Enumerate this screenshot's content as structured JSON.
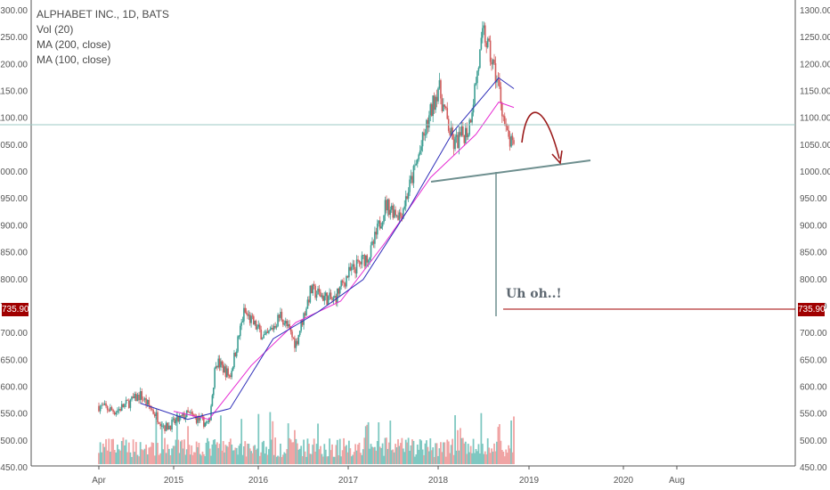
{
  "legend": {
    "symbol": "ALPHABET INC., 1D, BATS",
    "volume": "Vol (20)",
    "ma200": "MA (200, close)",
    "ma100": "MA (100, close)"
  },
  "annotation": "Uh oh..!",
  "current_price": "735.90",
  "colors": {
    "up": "#7ec8c1",
    "down": "#f0a4a4",
    "candle_up": "#3d9e93",
    "candle_down": "#d25d5d",
    "ma200": "#2d2db8",
    "ma100": "#e62ad2",
    "trendline": "#6e8f8f",
    "arrow": "#9b1b1b",
    "badge": "#a00000"
  },
  "chart_data": {
    "type": "candlestick",
    "y_ticks": [
      "1300.00",
      "1250.00",
      "1200.00",
      "1150.00",
      "1100.00",
      "1050.00",
      "1000.00",
      "950.00",
      "900.00",
      "850.00",
      "800.00",
      "750.00",
      "700.00",
      "650.00",
      "600.00",
      "550.00",
      "500.00",
      "450.00"
    ],
    "x_ticks": [
      "Apr",
      "2015",
      "2016",
      "2017",
      "2018",
      "2019",
      "2020",
      "Aug"
    ],
    "ylim": [
      450,
      1300
    ],
    "price_path": [
      {
        "date": "2014-04",
        "close": 565
      },
      {
        "date": "2014-06",
        "close": 555
      },
      {
        "date": "2014-09",
        "close": 585
      },
      {
        "date": "2014-12",
        "close": 525
      },
      {
        "date": "2015-03",
        "close": 550
      },
      {
        "date": "2015-06",
        "close": 530
      },
      {
        "date": "2015-07",
        "close": 650
      },
      {
        "date": "2015-09",
        "close": 620
      },
      {
        "date": "2015-11",
        "close": 740
      },
      {
        "date": "2016-02",
        "close": 690
      },
      {
        "date": "2016-04",
        "close": 735
      },
      {
        "date": "2016-06",
        "close": 680
      },
      {
        "date": "2016-08",
        "close": 780
      },
      {
        "date": "2016-11",
        "close": 760
      },
      {
        "date": "2017-01",
        "close": 810
      },
      {
        "date": "2017-04",
        "close": 850
      },
      {
        "date": "2017-06",
        "close": 940
      },
      {
        "date": "2017-08",
        "close": 920
      },
      {
        "date": "2017-10",
        "close": 1010
      },
      {
        "date": "2018-01",
        "close": 1160
      },
      {
        "date": "2018-03",
        "close": 1050
      },
      {
        "date": "2018-05",
        "close": 1080
      },
      {
        "date": "2018-07",
        "close": 1260
      },
      {
        "date": "2018-09",
        "close": 1160
      },
      {
        "date": "2018-10",
        "close": 1070
      },
      {
        "date": "2018-11",
        "close": 1040
      }
    ],
    "ma200_path": [
      {
        "date": "2014-09",
        "close": 570
      },
      {
        "date": "2015-03",
        "close": 540
      },
      {
        "date": "2015-09",
        "close": 560
      },
      {
        "date": "2016-03",
        "close": 690
      },
      {
        "date": "2016-09",
        "close": 740
      },
      {
        "date": "2017-03",
        "close": 800
      },
      {
        "date": "2017-09",
        "close": 930
      },
      {
        "date": "2018-03",
        "close": 1075
      },
      {
        "date": "2018-09",
        "close": 1175
      },
      {
        "date": "2018-11",
        "close": 1155
      }
    ],
    "ma100_path": [
      {
        "date": "2015-01",
        "close": 555
      },
      {
        "date": "2015-06",
        "close": 540
      },
      {
        "date": "2015-12",
        "close": 640
      },
      {
        "date": "2016-06",
        "close": 720
      },
      {
        "date": "2016-12",
        "close": 760
      },
      {
        "date": "2017-06",
        "close": 870
      },
      {
        "date": "2017-12",
        "close": 990
      },
      {
        "date": "2018-06",
        "close": 1070
      },
      {
        "date": "2018-09",
        "close": 1130
      },
      {
        "date": "2018-11",
        "close": 1120
      }
    ]
  }
}
